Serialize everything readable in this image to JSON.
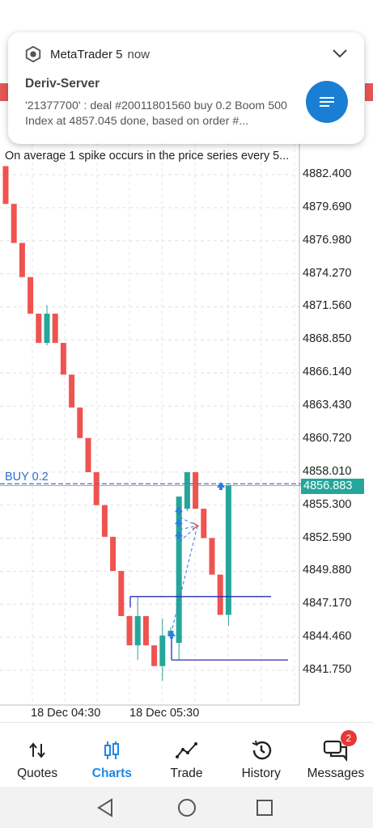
{
  "notification": {
    "app_name": "MetaTrader 5",
    "time": "now",
    "title": "Deriv-Server",
    "body": "'21377700' : deal #20011801560 buy 0.2 Boom 500 Index at 4857.045 done, based on order #..."
  },
  "chart": {
    "info_line": "On average 1 spike occurs in the price series every 5...",
    "price_labels": [
      "4882.400",
      "4879.690",
      "4876.980",
      "4874.270",
      "4871.560",
      "4868.850",
      "4866.140",
      "4863.430",
      "4860.720",
      "4858.010",
      "4855.300",
      "4852.590",
      "4849.880",
      "4847.170",
      "4844.460",
      "4841.750"
    ],
    "current_price": "4856.883",
    "position_label": "BUY 0.2",
    "time_labels": [
      "18 Dec 04:30",
      "18 Dec 05:30"
    ],
    "colors": {
      "bull": "#26a69a",
      "bear": "#ef5350",
      "marker": "#2f7be0",
      "line": "#2b2bb5"
    }
  },
  "chart_data": {
    "type": "candlestick",
    "ylim": [
      4840.5,
      4885.0
    ],
    "y_ticks": [
      4882.4,
      4879.69,
      4876.98,
      4874.27,
      4871.56,
      4868.85,
      4866.14,
      4863.43,
      4860.72,
      4858.01,
      4855.3,
      4852.59,
      4849.88,
      4847.17,
      4844.46,
      4841.75
    ],
    "candles": [
      {
        "o": 4883.1,
        "h": 4883.1,
        "l": 4880.0,
        "c": 4880.0
      },
      {
        "o": 4880.0,
        "h": 4880.0,
        "l": 4876.8,
        "c": 4876.8
      },
      {
        "o": 4876.8,
        "h": 4876.8,
        "l": 4874.0,
        "c": 4874.0
      },
      {
        "o": 4874.0,
        "h": 4874.0,
        "l": 4871.0,
        "c": 4871.0
      },
      {
        "o": 4871.0,
        "h": 4871.0,
        "l": 4868.6,
        "c": 4868.6
      },
      {
        "o": 4868.6,
        "h": 4871.7,
        "l": 4868.4,
        "c": 4871.0
      },
      {
        "o": 4871.0,
        "h": 4871.0,
        "l": 4868.6,
        "c": 4868.6
      },
      {
        "o": 4868.6,
        "h": 4868.6,
        "l": 4866.0,
        "c": 4866.0
      },
      {
        "o": 4866.0,
        "h": 4866.0,
        "l": 4863.3,
        "c": 4863.3
      },
      {
        "o": 4863.3,
        "h": 4863.3,
        "l": 4860.8,
        "c": 4860.8
      },
      {
        "o": 4860.8,
        "h": 4860.8,
        "l": 4858.0,
        "c": 4858.0
      },
      {
        "o": 4858.0,
        "h": 4858.0,
        "l": 4855.3,
        "c": 4855.3
      },
      {
        "o": 4855.3,
        "h": 4855.3,
        "l": 4852.7,
        "c": 4852.7
      },
      {
        "o": 4852.7,
        "h": 4852.7,
        "l": 4849.9,
        "c": 4849.9
      },
      {
        "o": 4849.9,
        "h": 4849.9,
        "l": 4846.2,
        "c": 4846.2
      },
      {
        "o": 4846.2,
        "h": 4846.2,
        "l": 4843.8,
        "c": 4843.8
      },
      {
        "o": 4843.8,
        "h": 4847.8,
        "l": 4842.6,
        "c": 4846.2
      },
      {
        "o": 4846.2,
        "h": 4846.2,
        "l": 4843.8,
        "c": 4843.8
      },
      {
        "o": 4843.8,
        "h": 4843.8,
        "l": 4842.1,
        "c": 4842.1
      },
      {
        "o": 4842.1,
        "h": 4846.0,
        "l": 4840.9,
        "c": 4844.6
      },
      {
        "o": 4844.6,
        "h": 4845.3,
        "l": 4844.4,
        "c": 4845.0
      },
      {
        "o": 4844.0,
        "h": 4856.0,
        "l": 4842.6,
        "c": 4856.0
      },
      {
        "o": 4855.0,
        "h": 4858.0,
        "l": 4854.8,
        "c": 4858.0
      },
      {
        "o": 4858.0,
        "h": 4858.0,
        "l": 4855.0,
        "c": 4855.0
      },
      {
        "o": 4855.0,
        "h": 4855.0,
        "l": 4852.6,
        "c": 4852.6
      },
      {
        "o": 4852.6,
        "h": 4852.6,
        "l": 4849.6,
        "c": 4849.6
      },
      {
        "o": 4849.6,
        "h": 4849.6,
        "l": 4846.3,
        "c": 4846.3
      },
      {
        "o": 4846.3,
        "h": 4856.9,
        "l": 4845.4,
        "c": 4856.9
      }
    ]
  },
  "nav": {
    "tabs": [
      {
        "label": "Quotes",
        "icon": "quotes-icon"
      },
      {
        "label": "Charts",
        "icon": "charts-icon"
      },
      {
        "label": "Trade",
        "icon": "trade-icon"
      },
      {
        "label": "History",
        "icon": "history-icon"
      },
      {
        "label": "Messages",
        "icon": "messages-icon"
      }
    ],
    "active": "Charts",
    "messages_badge": "2"
  }
}
